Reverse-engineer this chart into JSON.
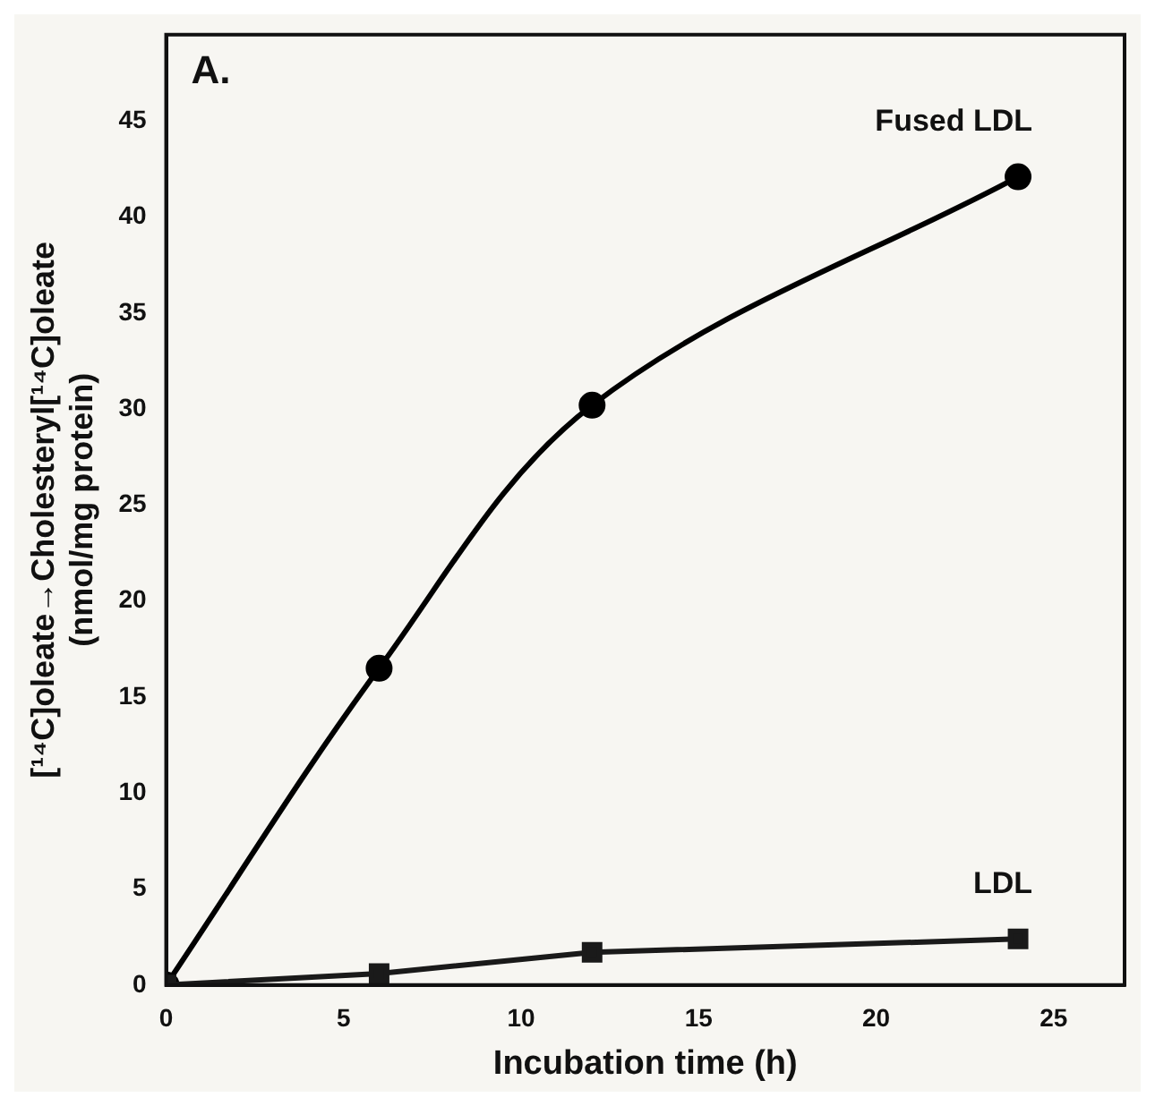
{
  "chart_data": {
    "type": "line",
    "title": "A.",
    "xlabel": "Incubation time (h)",
    "ylabel": "[¹⁴C]oleate→Cholesteryl[¹⁴C]oleate\n(nmol/mg protein)",
    "series": [
      {
        "name": "Fused LDL",
        "color": "#000000",
        "x": [
          0,
          6,
          12,
          24
        ],
        "values": [
          0,
          16.5,
          30.2,
          42.1
        ],
        "marker": "circle"
      },
      {
        "name": "LDL",
        "color": "#1a1a1a",
        "x": [
          0,
          6,
          12,
          24
        ],
        "values": [
          0,
          0.6,
          1.7,
          2.4
        ],
        "marker": "square"
      }
    ],
    "xlim": [
      0,
      27
    ],
    "xticks": [
      0,
      5,
      10,
      15,
      20,
      25
    ],
    "ylim": [
      0,
      49.5
    ],
    "yticks": [
      0,
      5,
      10,
      15,
      20,
      25,
      30,
      35,
      40,
      45
    ],
    "grid": false,
    "legend": false,
    "line_style": "solid"
  }
}
